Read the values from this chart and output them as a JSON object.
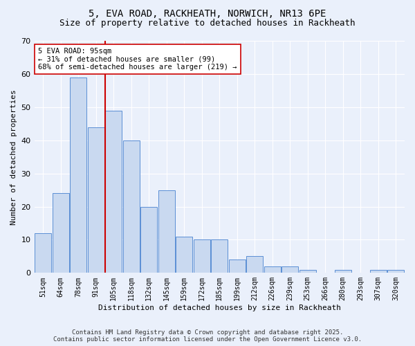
{
  "title_line1": "5, EVA ROAD, RACKHEATH, NORWICH, NR13 6PE",
  "title_line2": "Size of property relative to detached houses in Rackheath",
  "xlabel": "Distribution of detached houses by size in Rackheath",
  "ylabel": "Number of detached properties",
  "bar_labels": [
    "51sqm",
    "64sqm",
    "78sqm",
    "91sqm",
    "105sqm",
    "118sqm",
    "132sqm",
    "145sqm",
    "159sqm",
    "172sqm",
    "185sqm",
    "199sqm",
    "212sqm",
    "226sqm",
    "239sqm",
    "253sqm",
    "266sqm",
    "280sqm",
    "293sqm",
    "307sqm",
    "320sqm"
  ],
  "bar_values": [
    12,
    24,
    59,
    44,
    49,
    40,
    20,
    25,
    11,
    10,
    10,
    4,
    5,
    2,
    2,
    1,
    0,
    1,
    0,
    1,
    1
  ],
  "bar_color": "#c9d9f0",
  "bar_edge_color": "#5b8fd4",
  "ylim": [
    0,
    70
  ],
  "yticks": [
    0,
    10,
    20,
    30,
    40,
    50,
    60,
    70
  ],
  "vline_x": 3.5,
  "vline_color": "#cc0000",
  "annotation_text": "5 EVA ROAD: 95sqm\n← 31% of detached houses are smaller (99)\n68% of semi-detached houses are larger (219) →",
  "annotation_box_color": "#ffffff",
  "annotation_box_edge": "#cc0000",
  "footer_line1": "Contains HM Land Registry data © Crown copyright and database right 2025.",
  "footer_line2": "Contains public sector information licensed under the Open Government Licence v3.0.",
  "bg_color": "#eaf0fb",
  "plot_bg_color": "#eaf0fb",
  "grid_color": "#ffffff",
  "title_fontsize": 10,
  "subtitle_fontsize": 9,
  "tick_fontsize": 7,
  "ylabel_fontsize": 8,
  "xlabel_fontsize": 8,
  "footer_fontsize": 6.5,
  "annot_fontsize": 7.5
}
